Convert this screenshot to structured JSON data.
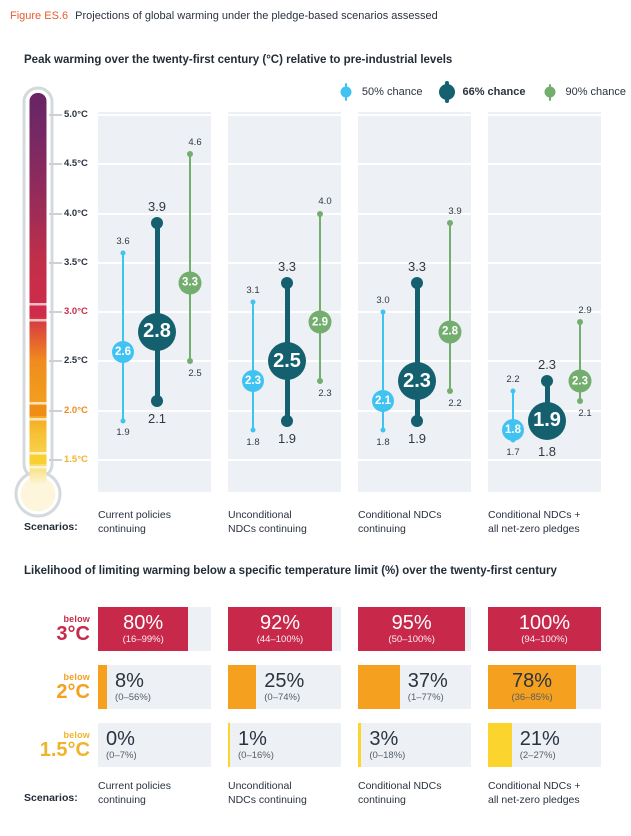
{
  "figure": {
    "label": "Figure ES.6",
    "title": "Projections of global warming under the pledge-based scenarios assessed",
    "accent_color": "#e85c2e"
  },
  "labels": {
    "scenarios_label": "Scenarios:",
    "scenario_lines": [
      "Current policies\ncontinuing",
      "Unconditional\nNDCs continuing",
      "Conditional NDCs\ncontinuing",
      "Conditional NDCs +\nall net-zero pledges"
    ]
  },
  "chart_data": [
    {
      "type": "dot-range",
      "title": "Peak warming over the twenty-first century (°C) relative to pre-industrial levels",
      "ylim": [
        1.5,
        5.0
      ],
      "grid": true,
      "legend_position": "top-right",
      "axis": [
        {
          "label": "5.0°C",
          "value": 5.0,
          "color": "#2a3340"
        },
        {
          "label": "4.5°C",
          "value": 4.5,
          "color": "#2a3340"
        },
        {
          "label": "4.0°C",
          "value": 4.0,
          "color": "#2a3340"
        },
        {
          "label": "3.5°C",
          "value": 3.5,
          "color": "#2a3340"
        },
        {
          "label": "3.0°C",
          "value": 3.0,
          "color": "#cd2b49"
        },
        {
          "label": "2.5°C",
          "value": 2.5,
          "color": "#2a3340"
        },
        {
          "label": "2.0°C",
          "value": 2.0,
          "color": "#ee8b1f"
        },
        {
          "label": "1.5°C",
          "value": 1.5,
          "color": "#f0b42c"
        }
      ],
      "categories": [
        "Current policies continuing",
        "Unconditional NDCs continuing",
        "Conditional NDCs continuing",
        "Conditional NDCs + all net-zero pledges"
      ],
      "series": [
        {
          "name": "50% chance",
          "color": "#41c3f1",
          "legend_bold": false,
          "points": [
            {
              "low": 1.9,
              "mid": 2.6,
              "high": 3.6
            },
            {
              "low": 1.8,
              "mid": 2.3,
              "high": 3.1
            },
            {
              "low": 1.8,
              "mid": 2.1,
              "high": 3.0
            },
            {
              "low": 1.7,
              "mid": 1.8,
              "high": 2.2
            }
          ]
        },
        {
          "name": "66% chance",
          "color": "#15606f",
          "legend_bold": true,
          "points": [
            {
              "low": 2.1,
              "mid": 2.8,
              "high": 3.9
            },
            {
              "low": 1.9,
              "mid": 2.5,
              "high": 3.3
            },
            {
              "low": 1.9,
              "mid": 2.3,
              "high": 3.3
            },
            {
              "low": 1.8,
              "mid": 1.9,
              "high": 2.3
            }
          ]
        },
        {
          "name": "90% chance",
          "color": "#74ae6e",
          "legend_bold": false,
          "points": [
            {
              "low": 2.5,
              "mid": 3.3,
              "high": 4.6
            },
            {
              "low": 2.3,
              "mid": 2.9,
              "high": 4.0
            },
            {
              "low": 2.2,
              "mid": 2.8,
              "high": 3.9
            },
            {
              "low": 2.1,
              "mid": 2.3,
              "high": 2.9
            }
          ]
        }
      ]
    },
    {
      "type": "bar",
      "title": "Likelihood of limiting warming below a specific temperature limit (%) over the twenty-first century",
      "categories": [
        "Current policies continuing",
        "Unconditional NDCs continuing",
        "Conditional NDCs continuing",
        "Conditional NDCs + all net-zero pledges"
      ],
      "rows": [
        {
          "prefix": "below",
          "limit": "3°C",
          "fill_color": "#c8294b",
          "label_color": "#c8294b",
          "text_style": "light",
          "values": [
            80,
            92,
            95,
            100
          ],
          "ranges": [
            "(16–99%)",
            "(44–100%)",
            "(50–100%)",
            "(94–100%)"
          ]
        },
        {
          "prefix": "below",
          "limit": "2°C",
          "fill_color": "#f5a01e",
          "label_color": "#f5a01e",
          "text_style": "dark",
          "values": [
            8,
            25,
            37,
            78
          ],
          "ranges": [
            "(0–56%)",
            "(0–74%)",
            "(1–77%)",
            "(36–85%)"
          ]
        },
        {
          "prefix": "below",
          "limit": "1.5°C",
          "fill_color": "#fbd42e",
          "label_color": "#efb42c",
          "text_style": "dark",
          "values": [
            0,
            1,
            3,
            21
          ],
          "ranges": [
            "(0–7%)",
            "(0–16%)",
            "(0–18%)",
            "(2–27%)"
          ]
        }
      ]
    }
  ]
}
